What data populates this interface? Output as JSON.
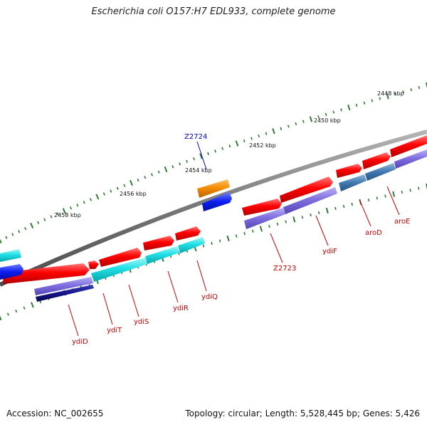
{
  "title": "Escherichia coli O157:H7 EDL933, complete genome",
  "footer": {
    "accession": "Accession: NC_002655",
    "topology": "Topology: circular; Length: 5,528,445 bp; Genes: 5,426"
  },
  "colors": {
    "backbone": "#7a7a7a",
    "tick": "#2e7d32",
    "forward_red": "#ee0000",
    "reverse_cyan": "#1fd6dc",
    "purple": "#7f6fe0",
    "dark_navy": "#141486",
    "steel_blue": "#3f78b0",
    "orange": "#f08a00",
    "blue": "#0b1ef0",
    "label_red": "#cc0000",
    "label_blue": "#0000cc"
  },
  "scale_labels": [
    "2448 kbp",
    "2450 kbp",
    "2452 kbp",
    "2454 kbp",
    "2456 kbp",
    "2458 kbp"
  ],
  "gene_labels": [
    {
      "text": "ydiD",
      "color": "red"
    },
    {
      "text": "ydiT",
      "color": "red"
    },
    {
      "text": "ydiS",
      "color": "red"
    },
    {
      "text": "ydiR",
      "color": "red"
    },
    {
      "text": "ydiQ",
      "color": "red"
    },
    {
      "text": "Z2723",
      "color": "red"
    },
    {
      "text": "ydiF",
      "color": "red"
    },
    {
      "text": "aroD",
      "color": "red"
    },
    {
      "text": "aroE",
      "color": "red"
    },
    {
      "text": "Z2724",
      "color": "blue"
    }
  ]
}
